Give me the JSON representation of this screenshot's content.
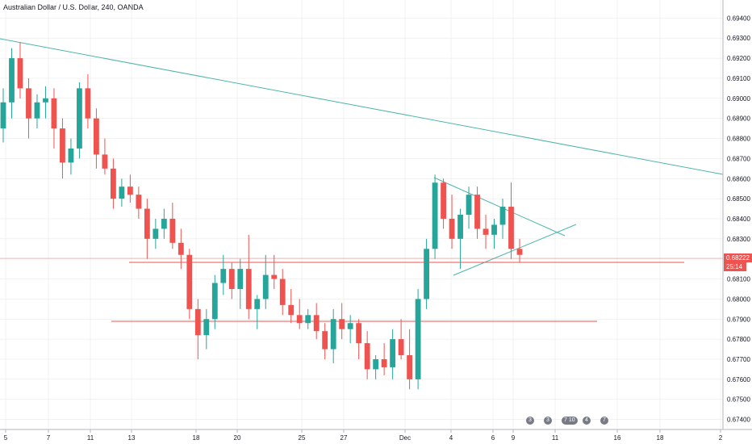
{
  "header": {
    "title": "Australian Dollar / U.S. Dollar, 240, OANDA"
  },
  "colors": {
    "up": "#26a69a",
    "down": "#ef5350",
    "trend": "#4db6ac",
    "level": "#ef5350",
    "axis": "#131722",
    "grid": "#e6e6e6"
  },
  "price_label": {
    "value": "0.68222",
    "countdown": "25:14"
  },
  "events": [
    {
      "label": "3"
    },
    {
      "label": "3"
    },
    {
      "label": "7 10"
    },
    {
      "label": "4"
    },
    {
      "label": "7"
    }
  ],
  "chart_data": {
    "type": "candlestick",
    "ylim": [
      0.6735,
      0.6949
    ],
    "y_ticks": [
      "0.67400",
      "0.67500",
      "0.67600",
      "0.67700",
      "0.67800",
      "0.67900",
      "0.68000",
      "0.68100",
      "0.68200",
      "0.68300",
      "0.68400",
      "0.68500",
      "0.68600",
      "0.68700",
      "0.68800",
      "0.68900",
      "0.69000",
      "0.69100",
      "0.69200",
      "0.69300",
      "0.69400"
    ],
    "x_ticks": [
      "5",
      "7",
      "11",
      "13",
      "18",
      "20",
      "25",
      "27",
      "Dec",
      "4",
      "6",
      "9",
      "11",
      "16",
      "18",
      "2"
    ],
    "candles_ohlc": [
      [
        0.6885,
        0.6905,
        0.6878,
        0.6898
      ],
      [
        0.6898,
        0.6925,
        0.689,
        0.692
      ],
      [
        0.692,
        0.6928,
        0.69,
        0.6905
      ],
      [
        0.6905,
        0.691,
        0.688,
        0.689
      ],
      [
        0.689,
        0.6902,
        0.6885,
        0.6898
      ],
      [
        0.6898,
        0.6906,
        0.689,
        0.69
      ],
      [
        0.69,
        0.6905,
        0.6875,
        0.6885
      ],
      [
        0.6885,
        0.689,
        0.686,
        0.6868
      ],
      [
        0.6868,
        0.688,
        0.6862,
        0.6875
      ],
      [
        0.6875,
        0.6908,
        0.687,
        0.6905
      ],
      [
        0.6905,
        0.6912,
        0.6885,
        0.689
      ],
      [
        0.689,
        0.6895,
        0.6865,
        0.6872
      ],
      [
        0.6872,
        0.688,
        0.6862,
        0.6865
      ],
      [
        0.6865,
        0.687,
        0.6845,
        0.685
      ],
      [
        0.685,
        0.686,
        0.6846,
        0.6856
      ],
      [
        0.6856,
        0.6862,
        0.6848,
        0.6852
      ],
      [
        0.6852,
        0.6856,
        0.684,
        0.6845
      ],
      [
        0.6845,
        0.685,
        0.682,
        0.683
      ],
      [
        0.683,
        0.684,
        0.6825,
        0.6835
      ],
      [
        0.6835,
        0.6845,
        0.683,
        0.684
      ],
      [
        0.684,
        0.6848,
        0.6825,
        0.6828
      ],
      [
        0.6828,
        0.6835,
        0.6815,
        0.6822
      ],
      [
        0.6822,
        0.6825,
        0.679,
        0.6795
      ],
      [
        0.6795,
        0.68,
        0.677,
        0.6782
      ],
      [
        0.6782,
        0.6795,
        0.6775,
        0.679
      ],
      [
        0.679,
        0.6812,
        0.6785,
        0.6808
      ],
      [
        0.6808,
        0.6822,
        0.6802,
        0.6815
      ],
      [
        0.6815,
        0.6818,
        0.68,
        0.6805
      ],
      [
        0.6805,
        0.682,
        0.6795,
        0.6815
      ],
      [
        0.6815,
        0.6832,
        0.679,
        0.6795
      ],
      [
        0.6795,
        0.6802,
        0.6785,
        0.68
      ],
      [
        0.68,
        0.6822,
        0.6795,
        0.6812
      ],
      [
        0.6812,
        0.6822,
        0.6805,
        0.681
      ],
      [
        0.681,
        0.6815,
        0.6792,
        0.6797
      ],
      [
        0.6797,
        0.6805,
        0.6788,
        0.6792
      ],
      [
        0.6792,
        0.68,
        0.6785,
        0.6788
      ],
      [
        0.6788,
        0.6795,
        0.6785,
        0.6792
      ],
      [
        0.6792,
        0.6798,
        0.678,
        0.6784
      ],
      [
        0.6784,
        0.6788,
        0.677,
        0.6775
      ],
      [
        0.6775,
        0.6795,
        0.6768,
        0.679
      ],
      [
        0.679,
        0.6798,
        0.678,
        0.6785
      ],
      [
        0.6785,
        0.6792,
        0.6778,
        0.6788
      ],
      [
        0.6788,
        0.679,
        0.677,
        0.6778
      ],
      [
        0.6778,
        0.6784,
        0.676,
        0.6765
      ],
      [
        0.6765,
        0.6772,
        0.676,
        0.677
      ],
      [
        0.677,
        0.6778,
        0.6762,
        0.6766
      ],
      [
        0.6766,
        0.6785,
        0.676,
        0.678
      ],
      [
        0.678,
        0.679,
        0.677,
        0.6772
      ],
      [
        0.6772,
        0.6785,
        0.6755,
        0.676
      ],
      [
        0.676,
        0.6805,
        0.6755,
        0.68
      ],
      [
        0.68,
        0.683,
        0.6795,
        0.6825
      ],
      [
        0.6825,
        0.6862,
        0.682,
        0.6858
      ],
      [
        0.6858,
        0.686,
        0.6835,
        0.684
      ],
      [
        0.684,
        0.6852,
        0.6825,
        0.683
      ],
      [
        0.683,
        0.6845,
        0.6815,
        0.6842
      ],
      [
        0.6842,
        0.6856,
        0.6835,
        0.6852
      ],
      [
        0.6852,
        0.6856,
        0.683,
        0.6835
      ],
      [
        0.6835,
        0.6842,
        0.6825,
        0.6832
      ],
      [
        0.6832,
        0.684,
        0.6825,
        0.6837
      ],
      [
        0.6837,
        0.685,
        0.683,
        0.6846
      ],
      [
        0.6846,
        0.6858,
        0.682,
        0.6825
      ],
      [
        0.6825,
        0.683,
        0.6818,
        0.6822
      ]
    ]
  }
}
